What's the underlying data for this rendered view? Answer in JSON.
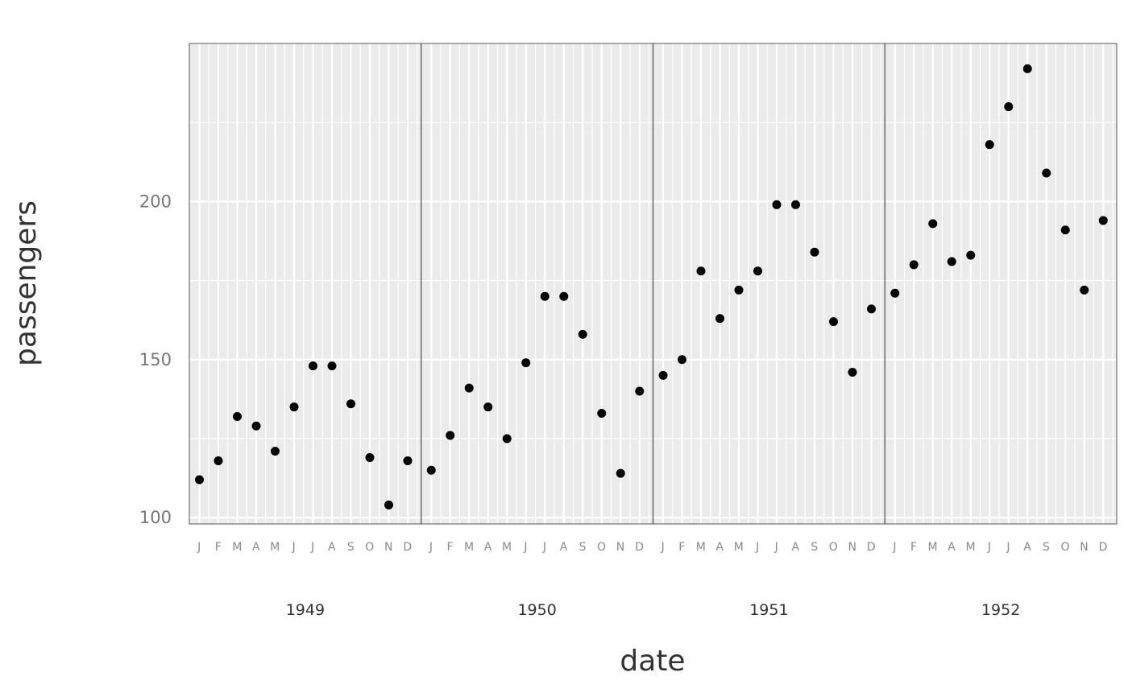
{
  "chart_data": {
    "type": "scatter",
    "title": "",
    "xlabel": "date",
    "ylabel": "passengers",
    "ylim": [
      98,
      250
    ],
    "y_ticks": [
      100,
      150,
      200
    ],
    "y_tick_labels": [
      "100",
      "150",
      "200"
    ],
    "month_labels": [
      "J",
      "F",
      "M",
      "A",
      "M",
      "J",
      "J",
      "A",
      "S",
      "O",
      "N",
      "D"
    ],
    "years": [
      "1949",
      "1950",
      "1951",
      "1952"
    ],
    "grid": true,
    "panel_background": "#ebebeb",
    "grid_color": "#ffffff",
    "point_color": "#000000",
    "separator_color": "#555555",
    "series": [
      {
        "x": [
          "1949-01",
          "1949-02",
          "1949-03",
          "1949-04",
          "1949-05",
          "1949-06",
          "1949-07",
          "1949-08",
          "1949-09",
          "1949-10",
          "1949-11",
          "1949-12",
          "1950-01",
          "1950-02",
          "1950-03",
          "1950-04",
          "1950-05",
          "1950-06",
          "1950-07",
          "1950-08",
          "1950-09",
          "1950-10",
          "1950-11",
          "1950-12",
          "1951-01",
          "1951-02",
          "1951-03",
          "1951-04",
          "1951-05",
          "1951-06",
          "1951-07",
          "1951-08",
          "1951-09",
          "1951-10",
          "1951-11",
          "1951-12",
          "1952-01",
          "1952-02",
          "1952-03",
          "1952-04",
          "1952-05",
          "1952-06",
          "1952-07",
          "1952-08",
          "1952-09",
          "1952-10",
          "1952-11",
          "1952-12"
        ],
        "values": [
          112,
          118,
          132,
          129,
          121,
          135,
          148,
          148,
          136,
          119,
          104,
          118,
          115,
          126,
          141,
          135,
          125,
          149,
          170,
          170,
          158,
          133,
          114,
          140,
          145,
          150,
          178,
          163,
          172,
          178,
          199,
          199,
          184,
          162,
          146,
          166,
          171,
          180,
          193,
          181,
          183,
          218,
          230,
          242,
          209,
          191,
          172,
          194
        ]
      }
    ]
  }
}
